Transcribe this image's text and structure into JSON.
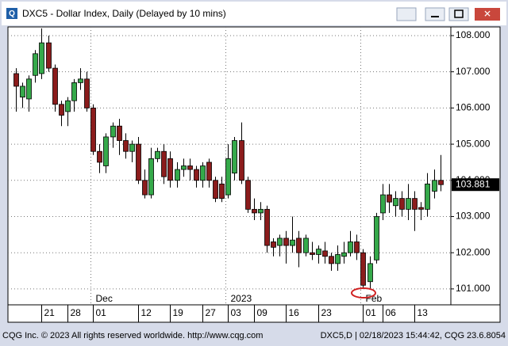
{
  "chart_data": {
    "type": "candlestick",
    "title": "DXC5 - Dollar Index, Daily (Delayed by 10 mins)",
    "categories": [
      null,
      null,
      null,
      null,
      "21",
      null,
      null,
      null,
      "28",
      null,
      null,
      null,
      "01",
      null,
      null,
      null,
      null,
      null,
      null,
      "12",
      null,
      null,
      null,
      null,
      "19",
      null,
      null,
      null,
      null,
      "27",
      null,
      null,
      null,
      "03",
      null,
      null,
      null,
      "09",
      null,
      null,
      null,
      null,
      "16",
      null,
      null,
      null,
      null,
      "23",
      null,
      null,
      null,
      null,
      null,
      null,
      "01",
      null,
      null,
      "06",
      null,
      null,
      null,
      null,
      "13",
      null,
      null,
      null,
      null
    ],
    "month_labels": [
      null,
      null,
      null,
      null,
      null,
      null,
      null,
      null,
      null,
      null,
      null,
      null,
      "Dec",
      null,
      null,
      null,
      null,
      null,
      null,
      null,
      null,
      null,
      null,
      null,
      null,
      null,
      null,
      null,
      null,
      null,
      null,
      null,
      null,
      "2023",
      null,
      null,
      null,
      null,
      null,
      null,
      null,
      null,
      null,
      null,
      null,
      null,
      null,
      null,
      null,
      null,
      null,
      null,
      null,
      null,
      "Feb",
      null,
      null,
      null,
      null,
      null,
      null,
      null,
      null,
      null,
      null,
      null,
      null
    ],
    "open": [
      106.95,
      106.3,
      106.25,
      106.9,
      106.95,
      107.8,
      107.1,
      106.1,
      105.9,
      106.2,
      106.7,
      106.8,
      106.0,
      104.8,
      104.4,
      105.2,
      105.5,
      105.1,
      104.8,
      105.0,
      104.0,
      103.6,
      104.6,
      104.8,
      104.6,
      104.0,
      104.3,
      104.4,
      104.3,
      104.0,
      104.5,
      104.0,
      103.9,
      103.6,
      104.2,
      105.1,
      104.0,
      103.2,
      103.1,
      103.2,
      102.3,
      102.2,
      102.4,
      102.2,
      102.4,
      102.0,
      102.0,
      101.95,
      102.05,
      101.9,
      101.7,
      101.9,
      102.0,
      102.3,
      102.0,
      101.2,
      101.8,
      103.1,
      103.6,
      103.3,
      103.5,
      103.2,
      103.5,
      103.25,
      103.2,
      103.7,
      104.0
    ],
    "high": [
      107.1,
      106.7,
      106.9,
      107.6,
      108.2,
      108.0,
      107.2,
      106.2,
      106.3,
      106.8,
      107.1,
      107.0,
      106.1,
      105.0,
      105.3,
      105.6,
      105.7,
      105.3,
      105.1,
      105.2,
      104.3,
      104.9,
      104.9,
      105.0,
      104.8,
      104.5,
      104.6,
      104.6,
      104.4,
      104.5,
      104.6,
      104.1,
      104.1,
      105.0,
      105.2,
      105.6,
      104.1,
      103.5,
      103.4,
      103.3,
      102.4,
      102.5,
      102.6,
      103.0,
      102.6,
      102.5,
      102.3,
      102.2,
      102.3,
      102.0,
      102.2,
      102.3,
      102.6,
      102.5,
      102.1,
      101.9,
      103.1,
      103.9,
      103.9,
      103.7,
      103.7,
      103.9,
      103.7,
      103.4,
      104.2,
      104.3,
      104.7
    ],
    "low": [
      105.9,
      106.0,
      105.9,
      106.7,
      106.8,
      107.0,
      105.9,
      105.5,
      105.5,
      105.9,
      106.5,
      105.9,
      104.7,
      104.2,
      104.2,
      104.9,
      104.7,
      104.6,
      104.5,
      103.9,
      103.5,
      103.5,
      104.5,
      103.9,
      103.8,
      103.8,
      104.1,
      104.0,
      103.8,
      103.8,
      103.8,
      103.4,
      103.4,
      103.5,
      104.0,
      103.9,
      103.1,
      102.9,
      102.9,
      102.0,
      101.9,
      101.9,
      101.7,
      102.0,
      101.6,
      101.9,
      101.8,
      101.7,
      101.7,
      101.5,
      101.5,
      101.7,
      101.9,
      101.8,
      101.0,
      101.0,
      101.7,
      102.9,
      103.1,
      103.0,
      103.0,
      102.9,
      102.6,
      102.9,
      103.0,
      103.5,
      103.7
    ],
    "close": [
      106.6,
      106.6,
      106.8,
      107.5,
      107.8,
      107.1,
      106.1,
      105.8,
      106.2,
      106.7,
      106.8,
      106.0,
      104.8,
      104.5,
      105.2,
      105.5,
      105.1,
      104.8,
      105.0,
      104.0,
      103.6,
      104.6,
      104.8,
      104.1,
      104.0,
      104.3,
      104.4,
      104.3,
      104.0,
      104.4,
      104.0,
      103.5,
      103.5,
      104.6,
      105.1,
      104.0,
      103.2,
      103.1,
      103.2,
      102.2,
      102.15,
      102.4,
      102.2,
      102.35,
      102.0,
      102.4,
      101.95,
      102.1,
      101.9,
      101.7,
      101.95,
      102.0,
      102.3,
      102.0,
      101.1,
      101.7,
      103.0,
      103.6,
      103.4,
      103.5,
      103.2,
      103.5,
      103.2,
      103.2,
      103.9,
      104.0,
      103.881
    ],
    "up_color": "#35a94a",
    "down_color": "#8b1c1c",
    "last_price": 103.881,
    "ylim": [
      100.56,
      108.24
    ],
    "yticks": [
      {
        "value": 101,
        "label": "101.000"
      },
      {
        "value": 102,
        "label": "102.000"
      },
      {
        "value": 103,
        "label": "103.000"
      },
      {
        "value": 104,
        "label": "104.000"
      },
      {
        "value": 105,
        "label": "105.000"
      },
      {
        "value": 106,
        "label": "106.000"
      },
      {
        "value": 107,
        "label": "107.000"
      },
      {
        "value": 108,
        "label": "108.000"
      }
    ],
    "grid": true
  },
  "footer": {
    "copyright": "CQG Inc. © 2023 All rights reserved worldwide. http://www.cqg.com",
    "status": "DXC5,D | 02/18/2023 15:44:42, CQG 23.6.8054"
  }
}
